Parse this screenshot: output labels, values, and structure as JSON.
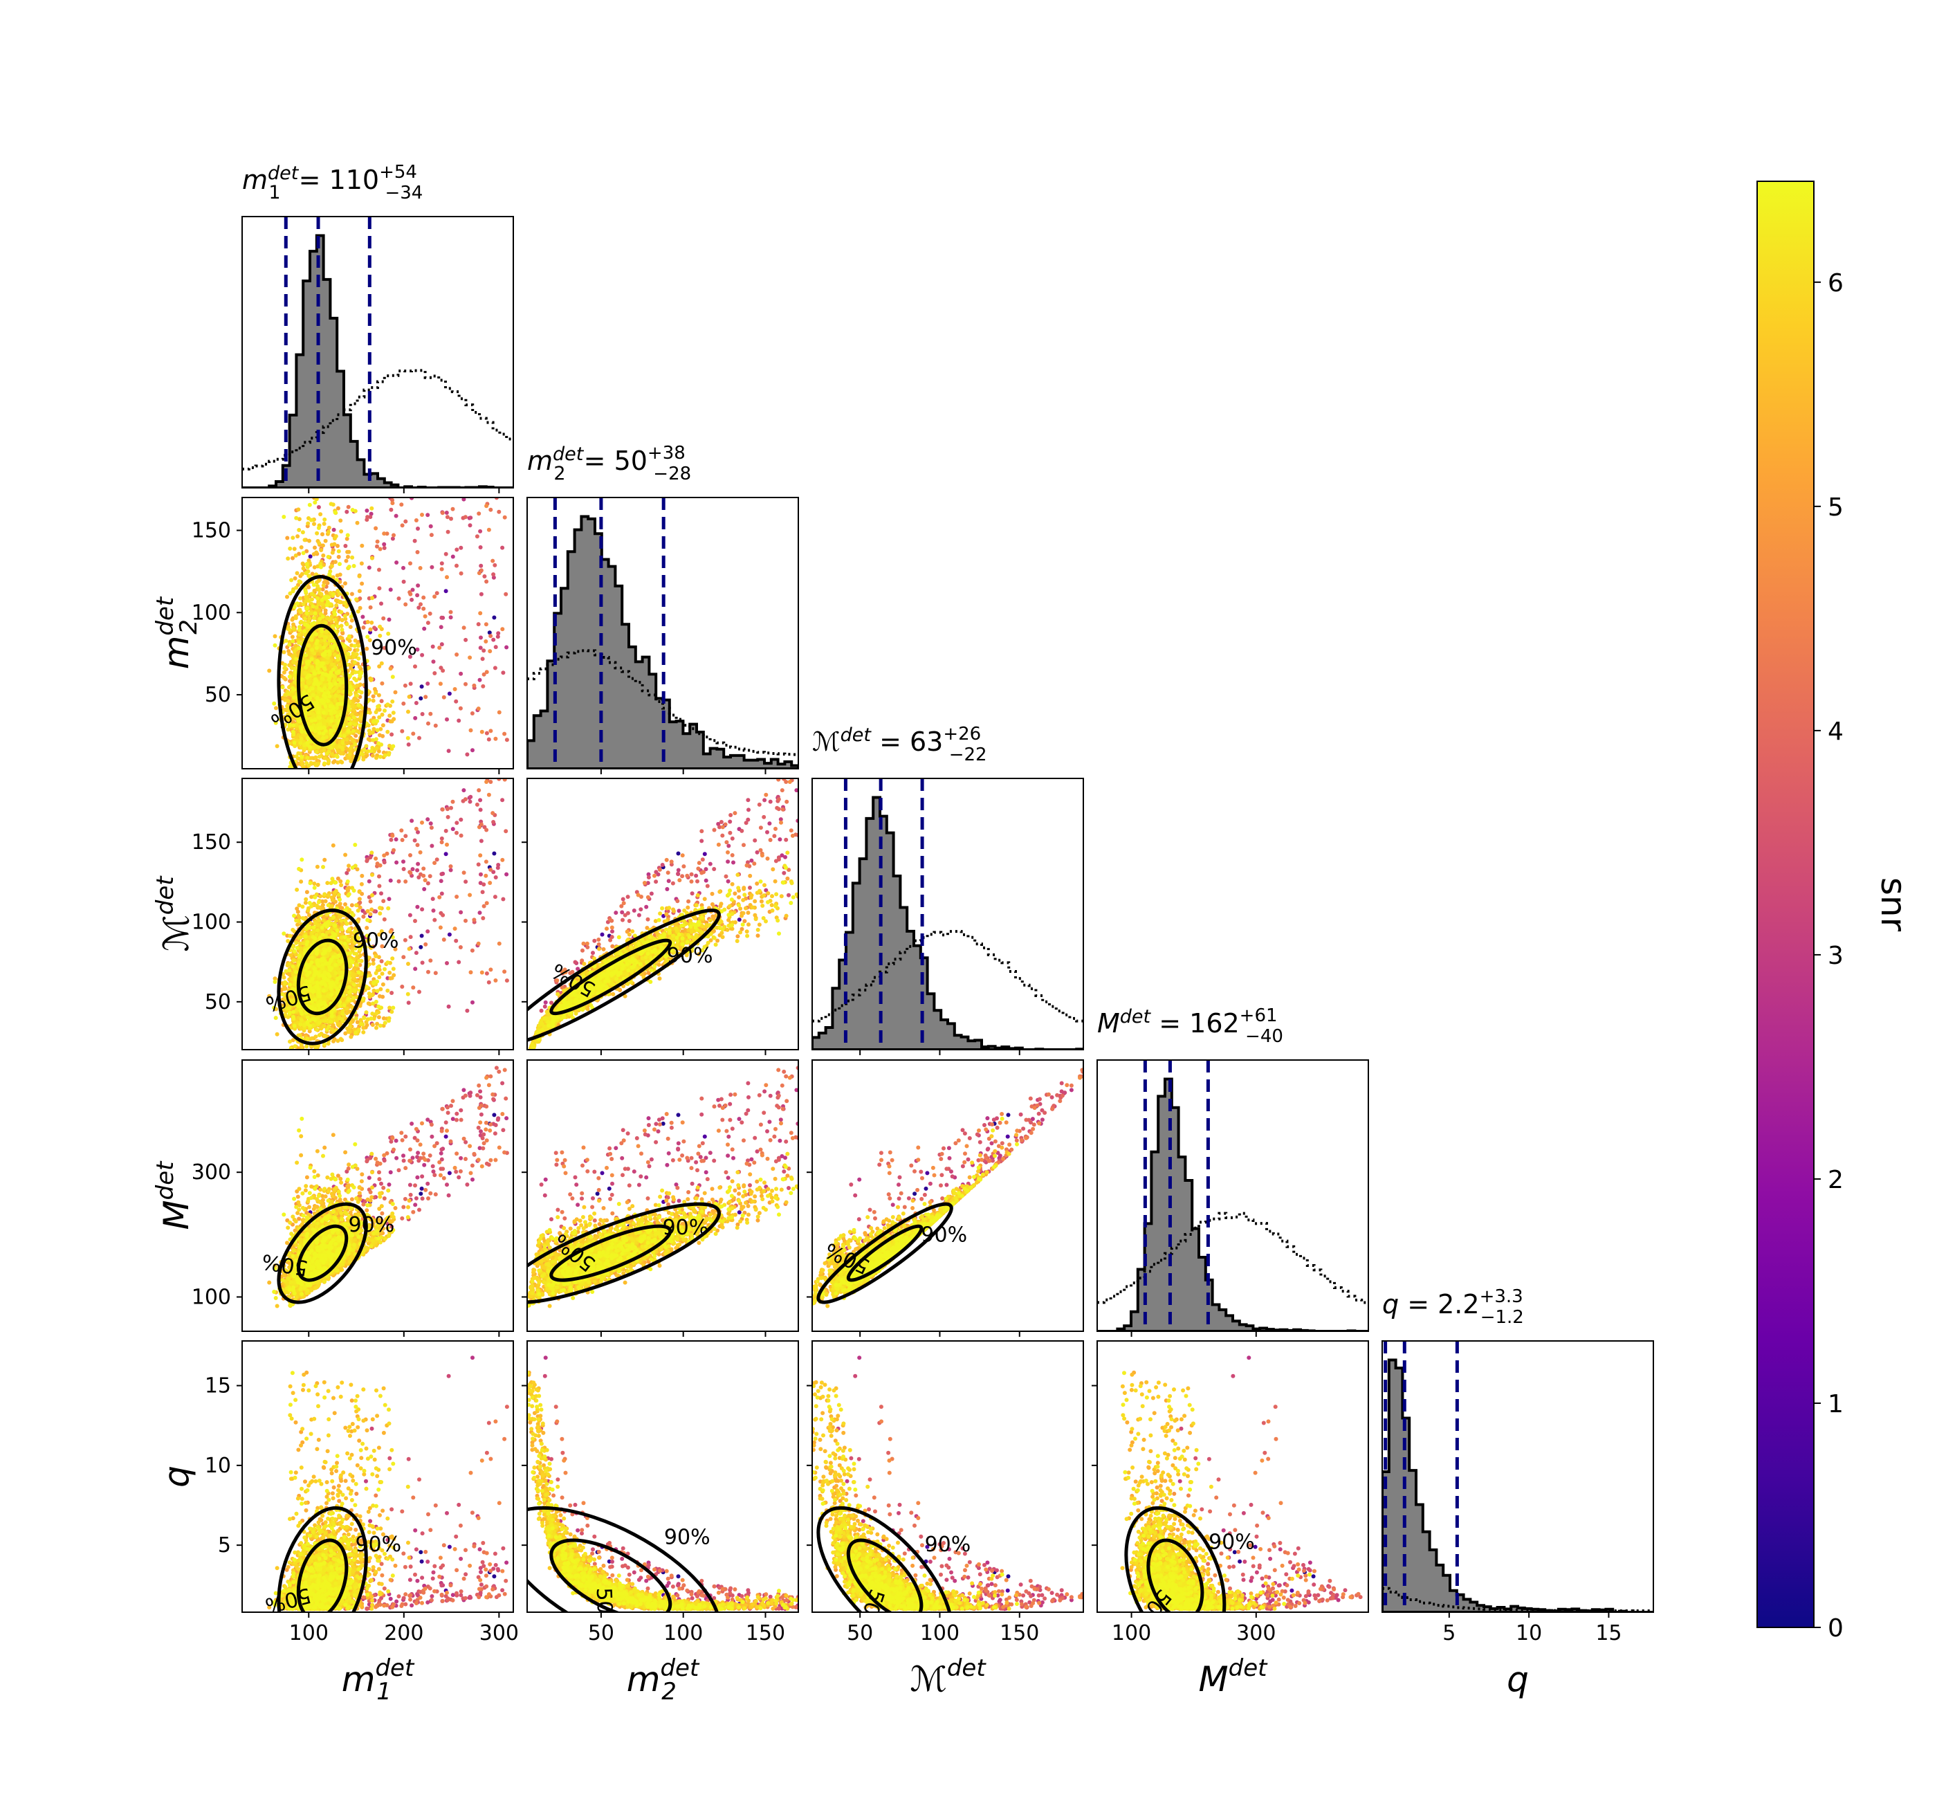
{
  "chart_data": {
    "type": "scatter",
    "kind": "corner plot",
    "parameters": [
      {
        "key": "m1",
        "symbol": "m",
        "sub": "1",
        "sup": "det",
        "range": [
          30,
          315
        ],
        "ticks": [
          100,
          200,
          300
        ],
        "title": {
          "value": "110",
          "plus": "+54",
          "minus": "−34"
        },
        "median": 110,
        "lo": 76,
        "hi": 164
      },
      {
        "key": "m2",
        "symbol": "m",
        "sub": "2",
        "sup": "det",
        "range": [
          5,
          170
        ],
        "ticks": [
          50,
          100,
          150
        ],
        "title": {
          "value": "50",
          "plus": "+38",
          "minus": "−28"
        },
        "median": 50,
        "lo": 22,
        "hi": 88
      },
      {
        "key": "Mc",
        "symbol": "ℳ",
        "sub": "",
        "sup": "det",
        "range": [
          20,
          190
        ],
        "ticks": [
          50,
          100,
          150
        ],
        "title": {
          "value": "63",
          "plus": "+26",
          "minus": "−22"
        },
        "median": 63,
        "lo": 41,
        "hi": 89
      },
      {
        "key": "Mt",
        "symbol": "M",
        "sub": "",
        "sup": "det",
        "range": [
          45,
          480
        ],
        "ticks": [
          100,
          300
        ],
        "title": {
          "value": "162",
          "plus": "+61",
          "minus": "−40"
        },
        "median": 162,
        "lo": 122,
        "hi": 223
      },
      {
        "key": "q",
        "symbol": "q",
        "sub": "",
        "sup": "",
        "range": [
          0.8,
          17.8
        ],
        "ticks": [
          5,
          10,
          15
        ],
        "title": {
          "value": "2.2",
          "plus": "+3.3",
          "minus": "−1.2"
        },
        "median": 2.2,
        "lo": 1.0,
        "hi": 5.5
      }
    ],
    "contour_labels": [
      "50%",
      "90%"
    ],
    "colorbar": {
      "label": "snr",
      "min": 0,
      "max": 6.45,
      "ticks": [
        0,
        1,
        2,
        3,
        4,
        5,
        6
      ],
      "colormap": [
        "#0d0887",
        "#41049d",
        "#6a00a8",
        "#8f0da4",
        "#b12a90",
        "#cc4778",
        "#e16462",
        "#f2844b",
        "#fca636",
        "#fcce25",
        "#f0f921"
      ]
    },
    "colors": {
      "histogram_fill": "#808080",
      "histogram_edge": "#000000",
      "quantile_lines": "#000080",
      "prior": "#000000"
    },
    "legend": "none",
    "grid": false
  }
}
